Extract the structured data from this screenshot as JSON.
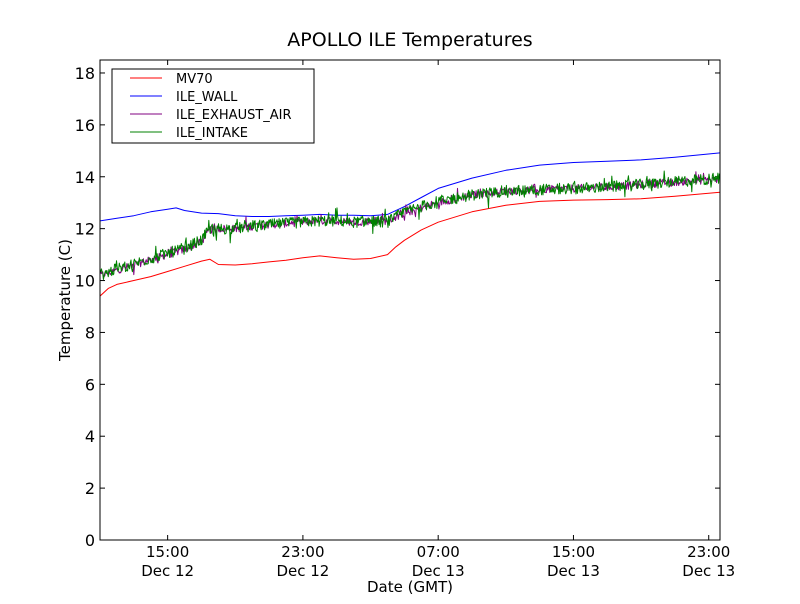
{
  "chart_data": {
    "type": "line",
    "title": "APOLLO ILE Temperatures",
    "xlabel": "Date (GMT)",
    "ylabel": "Temperature (C)",
    "xlim": [
      "2012-12-12T11:00",
      "2012-12-13T23:40"
    ],
    "ylim": [
      0,
      18.5
    ],
    "yticks": [
      0,
      2,
      4,
      6,
      8,
      10,
      12,
      14,
      16,
      18
    ],
    "xticks": [
      {
        "at": "2012-12-12T15:00",
        "label": [
          "15:00",
          "Dec 12"
        ]
      },
      {
        "at": "2012-12-12T23:00",
        "label": [
          "23:00",
          "Dec 12"
        ]
      },
      {
        "at": "2012-12-13T07:00",
        "label": [
          "07:00",
          "Dec 13"
        ]
      },
      {
        "at": "2012-12-13T15:00",
        "label": [
          "15:00",
          "Dec 13"
        ]
      },
      {
        "at": "2012-12-13T23:00",
        "label": [
          "23:00",
          "Dec 13"
        ]
      }
    ],
    "grid": false,
    "legend": {
      "position": "top-left",
      "frame": true
    },
    "series": [
      {
        "name": "MV70",
        "color": "#ff0000",
        "noise": 0,
        "x": [
          "2012-12-12T11:00",
          "2012-12-12T11:30",
          "2012-12-12T12:00",
          "2012-12-12T13:00",
          "2012-12-12T14:00",
          "2012-12-12T15:00",
          "2012-12-12T16:00",
          "2012-12-12T17:00",
          "2012-12-12T17:30",
          "2012-12-12T18:00",
          "2012-12-12T19:00",
          "2012-12-12T20:00",
          "2012-12-12T21:00",
          "2012-12-12T22:00",
          "2012-12-12T23:00",
          "2012-12-13T00:00",
          "2012-12-13T01:00",
          "2012-12-13T02:00",
          "2012-12-13T03:00",
          "2012-12-13T04:00",
          "2012-12-13T04:30",
          "2012-12-13T05:00",
          "2012-12-13T06:00",
          "2012-12-13T07:00",
          "2012-12-13T09:00",
          "2012-12-13T11:00",
          "2012-12-13T13:00",
          "2012-12-13T15:00",
          "2012-12-13T17:00",
          "2012-12-13T19:00",
          "2012-12-13T21:00",
          "2012-12-13T23:40"
        ],
        "values": [
          9.4,
          9.7,
          9.85,
          10.0,
          10.15,
          10.35,
          10.55,
          10.75,
          10.82,
          10.62,
          10.6,
          10.65,
          10.72,
          10.78,
          10.88,
          10.95,
          10.88,
          10.82,
          10.85,
          11.0,
          11.3,
          11.55,
          11.95,
          12.25,
          12.65,
          12.9,
          13.05,
          13.1,
          13.12,
          13.15,
          13.25,
          13.4
        ]
      },
      {
        "name": "ILE_WALL",
        "color": "#0000ff",
        "noise": 0,
        "x": [
          "2012-12-12T11:00",
          "2012-12-12T12:00",
          "2012-12-12T13:00",
          "2012-12-12T14:00",
          "2012-12-12T15:00",
          "2012-12-12T15:30",
          "2012-12-12T16:00",
          "2012-12-12T17:00",
          "2012-12-12T18:00",
          "2012-12-12T19:00",
          "2012-12-12T20:00",
          "2012-12-12T21:00",
          "2012-12-12T22:00",
          "2012-12-12T23:00",
          "2012-12-13T00:00",
          "2012-12-13T01:00",
          "2012-12-13T02:00",
          "2012-12-13T03:00",
          "2012-12-13T04:00",
          "2012-12-13T05:00",
          "2012-12-13T06:00",
          "2012-12-13T07:00",
          "2012-12-13T09:00",
          "2012-12-13T11:00",
          "2012-12-13T13:00",
          "2012-12-13T15:00",
          "2012-12-13T17:00",
          "2012-12-13T19:00",
          "2012-12-13T21:00",
          "2012-12-13T23:40"
        ],
        "values": [
          12.3,
          12.4,
          12.5,
          12.65,
          12.75,
          12.8,
          12.7,
          12.6,
          12.58,
          12.5,
          12.47,
          12.47,
          12.5,
          12.52,
          12.55,
          12.52,
          12.52,
          12.5,
          12.55,
          12.85,
          13.2,
          13.55,
          13.95,
          14.25,
          14.45,
          14.55,
          14.6,
          14.65,
          14.75,
          14.92
        ]
      },
      {
        "name": "ILE_EXHAUST_AIR",
        "color": "#800080",
        "noise": 0.15,
        "x": [
          "2012-12-12T11:00",
          "2012-12-12T12:00",
          "2012-12-12T13:00",
          "2012-12-12T14:00",
          "2012-12-12T15:00",
          "2012-12-12T16:00",
          "2012-12-12T17:00",
          "2012-12-12T17:30",
          "2012-12-12T18:00",
          "2012-12-12T19:00",
          "2012-12-12T20:00",
          "2012-12-12T21:00",
          "2012-12-12T22:00",
          "2012-12-12T23:00",
          "2012-12-13T00:00",
          "2012-12-13T01:00",
          "2012-12-13T02:00",
          "2012-12-13T03:00",
          "2012-12-13T04:00",
          "2012-12-13T05:00",
          "2012-12-13T06:00",
          "2012-12-13T07:00",
          "2012-12-13T09:00",
          "2012-12-13T11:00",
          "2012-12-13T13:00",
          "2012-12-13T15:00",
          "2012-12-13T17:00",
          "2012-12-13T19:00",
          "2012-12-13T21:00",
          "2012-12-13T23:40"
        ],
        "values": [
          10.2,
          10.4,
          10.6,
          10.8,
          11.0,
          11.2,
          11.5,
          11.95,
          12.0,
          12.0,
          12.1,
          12.15,
          12.2,
          12.25,
          12.3,
          12.3,
          12.25,
          12.3,
          12.3,
          12.6,
          12.8,
          13.0,
          13.3,
          13.45,
          13.5,
          13.55,
          13.6,
          13.7,
          13.8,
          13.9
        ]
      },
      {
        "name": "ILE_INTAKE",
        "color": "#008000",
        "noise": 0.22,
        "x": [
          "2012-12-12T11:00",
          "2012-12-12T12:00",
          "2012-12-12T13:00",
          "2012-12-12T14:00",
          "2012-12-12T15:00",
          "2012-12-12T16:00",
          "2012-12-12T17:00",
          "2012-12-12T17:30",
          "2012-12-12T18:00",
          "2012-12-12T19:00",
          "2012-12-12T20:00",
          "2012-12-12T21:00",
          "2012-12-12T22:00",
          "2012-12-12T23:00",
          "2012-12-13T00:00",
          "2012-12-13T01:00",
          "2012-12-13T02:00",
          "2012-12-13T03:00",
          "2012-12-13T04:00",
          "2012-12-13T05:00",
          "2012-12-13T06:00",
          "2012-12-13T07:00",
          "2012-12-13T09:00",
          "2012-12-13T11:00",
          "2012-12-13T13:00",
          "2012-12-13T15:00",
          "2012-12-13T17:00",
          "2012-12-13T19:00",
          "2012-12-13T21:00",
          "2012-12-13T23:40"
        ],
        "values": [
          10.2,
          10.45,
          10.65,
          10.85,
          11.05,
          11.25,
          11.55,
          12.0,
          12.0,
          12.0,
          12.1,
          12.15,
          12.2,
          12.25,
          12.3,
          12.3,
          12.25,
          12.3,
          12.25,
          12.65,
          12.85,
          13.05,
          13.3,
          13.45,
          13.5,
          13.55,
          13.6,
          13.7,
          13.8,
          13.95
        ]
      }
    ]
  }
}
